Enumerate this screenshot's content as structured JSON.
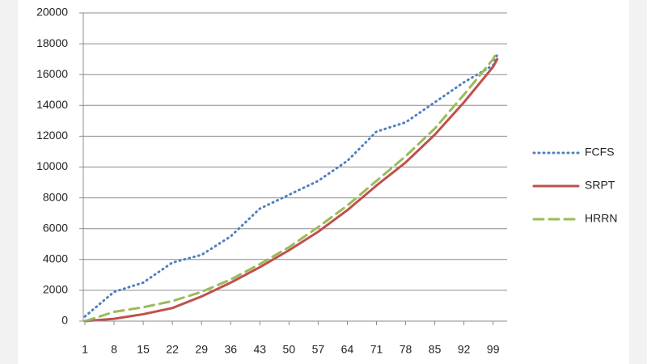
{
  "chart_data": {
    "type": "line",
    "x": [
      1,
      8,
      15,
      22,
      29,
      36,
      43,
      50,
      57,
      64,
      71,
      78,
      85,
      92,
      99,
      100
    ],
    "series": [
      {
        "name": "FCFS",
        "color": "#4f81bd",
        "values": [
          300,
          1900,
          2500,
          3800,
          4300,
          5500,
          7300,
          8200,
          9100,
          10400,
          12300,
          12900,
          14200,
          15500,
          16600,
          17300
        ]
      },
      {
        "name": "SRPT",
        "color": "#c0504d",
        "values": [
          0,
          150,
          450,
          850,
          1600,
          2500,
          3500,
          4600,
          5800,
          7200,
          8800,
          10300,
          12100,
          14200,
          16500,
          17000
        ]
      },
      {
        "name": "HRRN",
        "color": "#9bbb59",
        "values": [
          0,
          600,
          900,
          1300,
          1900,
          2700,
          3700,
          4800,
          6100,
          7500,
          9100,
          10700,
          12500,
          14700,
          17000,
          17500
        ]
      }
    ],
    "xlim": [
      1,
      101
    ],
    "xticks": [
      1,
      8,
      15,
      22,
      29,
      36,
      43,
      50,
      57,
      64,
      71,
      78,
      85,
      92,
      99
    ],
    "ylim": [
      0,
      20000
    ],
    "yticks": [
      0,
      2000,
      4000,
      6000,
      8000,
      10000,
      12000,
      14000,
      16000,
      18000,
      20000
    ],
    "grid": true,
    "legend": "right"
  }
}
